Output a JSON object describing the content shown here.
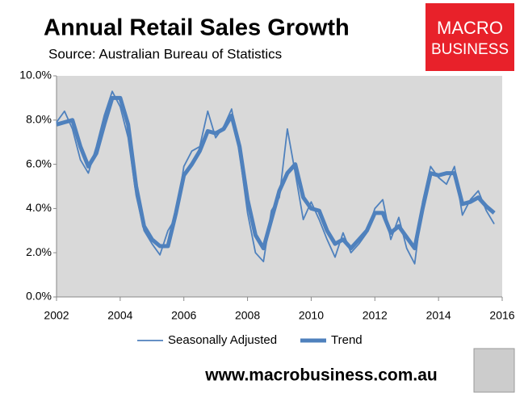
{
  "chart_data": {
    "type": "line",
    "title": "Annual Retail Sales Growth",
    "subtitle": "Source: Australian Bureau of Statistics",
    "x": [
      2002.0,
      2002.25,
      2002.5,
      2002.75,
      2003.0,
      2003.25,
      2003.5,
      2003.75,
      2004.0,
      2004.25,
      2004.5,
      2004.75,
      2005.0,
      2005.25,
      2005.5,
      2005.75,
      2006.0,
      2006.25,
      2006.5,
      2006.75,
      2007.0,
      2007.25,
      2007.5,
      2007.75,
      2008.0,
      2008.25,
      2008.5,
      2008.75,
      2009.0,
      2009.25,
      2009.5,
      2009.75,
      2010.0,
      2010.25,
      2010.5,
      2010.75,
      2011.0,
      2011.25,
      2011.5,
      2011.75,
      2012.0,
      2012.25,
      2012.5,
      2012.75,
      2013.0,
      2013.25,
      2013.5,
      2013.75,
      2014.0,
      2014.25,
      2014.5,
      2014.75,
      2015.0,
      2015.25,
      2015.5,
      2015.75
    ],
    "series": [
      {
        "name": "Seasonally Adjusted",
        "color": "#4f81bd",
        "values": [
          7.9,
          8.4,
          7.6,
          6.2,
          5.6,
          6.8,
          8.2,
          9.3,
          8.6,
          7.2,
          4.6,
          3.0,
          2.4,
          1.9,
          3.0,
          3.6,
          5.9,
          6.6,
          6.8,
          8.4,
          7.2,
          7.7,
          8.5,
          6.5,
          3.8,
          2.0,
          1.6,
          3.9,
          4.5,
          7.6,
          5.6,
          3.5,
          4.3,
          3.5,
          2.6,
          1.8,
          2.9,
          2.0,
          2.4,
          2.9,
          4.0,
          4.4,
          2.6,
          3.6,
          2.2,
          1.5,
          4.3,
          5.9,
          5.4,
          5.1,
          5.9,
          3.7,
          4.4,
          4.8,
          3.9,
          3.3
        ]
      },
      {
        "name": "Trend",
        "color": "#4f81bd",
        "values": [
          7.8,
          7.9,
          8.0,
          6.8,
          5.9,
          6.5,
          7.8,
          9.0,
          9.0,
          7.8,
          5.0,
          3.2,
          2.6,
          2.3,
          2.3,
          3.8,
          5.5,
          6.0,
          6.6,
          7.5,
          7.4,
          7.6,
          8.2,
          6.8,
          4.4,
          2.8,
          2.2,
          3.5,
          4.8,
          5.6,
          6.0,
          4.5,
          4.0,
          3.9,
          3.0,
          2.4,
          2.6,
          2.2,
          2.6,
          3.0,
          3.8,
          3.8,
          2.9,
          3.2,
          2.7,
          2.2,
          4.0,
          5.6,
          5.5,
          5.6,
          5.6,
          4.2,
          4.3,
          4.5,
          4.1,
          3.8
        ]
      }
    ],
    "xlim": [
      2002,
      2016
    ],
    "xticks": [
      2002,
      2004,
      2006,
      2008,
      2010,
      2012,
      2014,
      2016
    ],
    "ylim": [
      0,
      10
    ],
    "yticks": [
      {
        "value": 0,
        "label": "0.0%"
      },
      {
        "value": 2,
        "label": "2.0%"
      },
      {
        "value": 4,
        "label": "4.0%"
      },
      {
        "value": 6,
        "label": "6.0%"
      },
      {
        "value": 8,
        "label": "8.0%"
      },
      {
        "value": 10,
        "label": "10.0%"
      }
    ],
    "legend": "bottom"
  },
  "logo": {
    "line1": "MACRO",
    "line2": "BUSINESS"
  },
  "footer_url": "www.macrobusiness.com.au"
}
